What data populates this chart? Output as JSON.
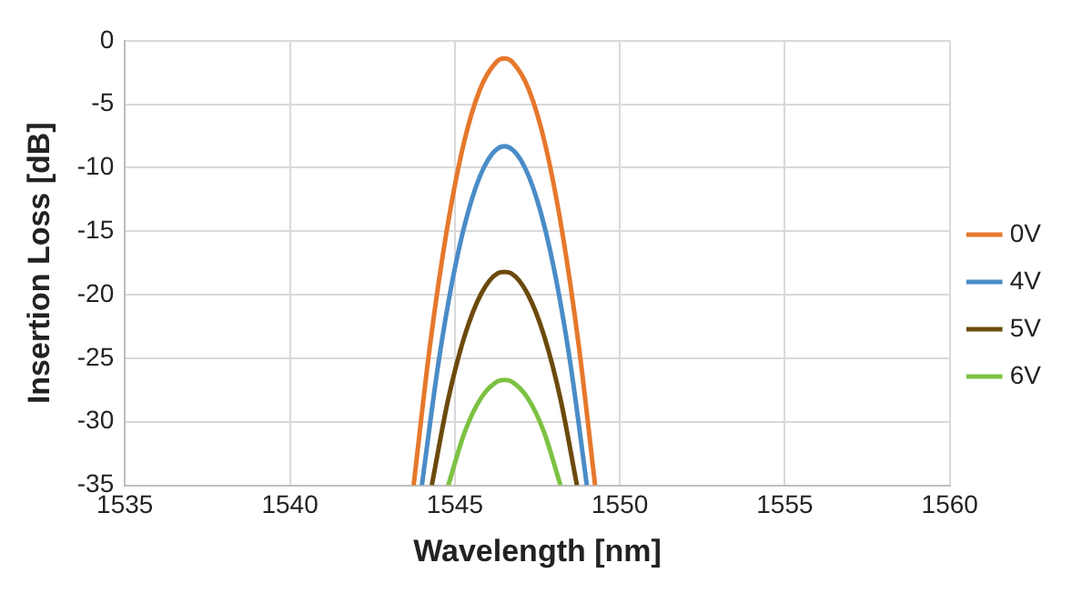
{
  "chart_data": {
    "type": "line",
    "xlabel": "Wavelength [nm]",
    "ylabel": "Insertion Loss [dB]",
    "xlim": [
      1535,
      1560
    ],
    "xticks": [
      1535,
      1540,
      1545,
      1550,
      1555,
      1560
    ],
    "ylim": [
      -35,
      0
    ],
    "yticks": [
      -35,
      -30,
      -25,
      -20,
      -15,
      -10,
      -5,
      0
    ],
    "grid": true,
    "legend": "right",
    "marker": "none",
    "line_style": "solid",
    "series": [
      {
        "name": "0V",
        "color": "#e6782c",
        "x": [
          1543.75,
          1544.25,
          1544.75,
          1545.25,
          1545.75,
          1546.25,
          1546.5,
          1546.75,
          1547.25,
          1547.75,
          1548.25,
          1548.75,
          1549.25
        ],
        "values": [
          -35,
          -23.9,
          -15,
          -8.3,
          -3.9,
          -1.7,
          -1.4,
          -1.7,
          -3.9,
          -8.3,
          -15,
          -23.9,
          -35
        ]
      },
      {
        "name": "4V",
        "color": "#4a8cc7",
        "x": [
          1544,
          1544.5,
          1545,
          1545.5,
          1546,
          1546.5,
          1547,
          1547.5,
          1548,
          1548.5,
          1549
        ],
        "values": [
          -35,
          -25.4,
          -17.9,
          -12.6,
          -9.4,
          -8.3,
          -9.4,
          -12.6,
          -17.9,
          -25.4,
          -35
        ]
      },
      {
        "name": "5V",
        "color": "#6b4a0c",
        "x": [
          1544.3,
          1544.8,
          1545.3,
          1545.8,
          1546.3,
          1546.5,
          1546.7,
          1547.2,
          1547.7,
          1548.2,
          1548.7
        ],
        "values": [
          -35,
          -28.2,
          -23.2,
          -19.9,
          -18.3,
          -18.2,
          -18.3,
          -19.9,
          -23.2,
          -28.2,
          -35
        ]
      },
      {
        "name": "6V",
        "color": "#7cc242",
        "x": [
          1544.8,
          1545.3,
          1545.8,
          1546.3,
          1546.5,
          1546.7,
          1547.2,
          1547.7,
          1548.2
        ],
        "values": [
          -35,
          -30.8,
          -28.1,
          -26.8,
          -26.7,
          -26.8,
          -28.1,
          -30.8,
          -35
        ]
      }
    ]
  }
}
